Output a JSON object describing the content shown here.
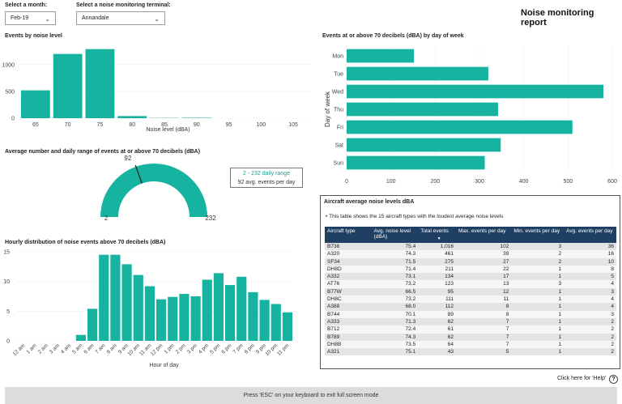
{
  "filters": {
    "month_label": "Select a month:",
    "month_value": "Feb-19",
    "terminal_label": "Select a noise monitoring terminal:",
    "terminal_value": "Annandale"
  },
  "page_title": "Noise monitoring report",
  "events_by_noise": {
    "title": "Events by noise level",
    "xlabel": "Noise level (dBA)"
  },
  "day_of_week": {
    "title": "Events at or above 70 decibels (dBA) by day of week",
    "ylabel": "Day of week"
  },
  "gauge": {
    "title": "Average number and daily range of events at or above 70 decibels (dBA)",
    "min_label": "2",
    "max_label": "232",
    "avg_label": "92",
    "min": 2,
    "max": 232,
    "avg": 92,
    "range_text": "2 - 232 daily range",
    "avg_text": "92 avg. events per day",
    "color": "#16b3a0"
  },
  "hourly": {
    "title": "Hourly distribution of noise events above 70 decibels (dBA)",
    "xlabel": "Hour of day"
  },
  "aircraft_table": {
    "title": "Aircraft average noise levels dBA",
    "note": "This table shows the 15 aircraft types with the loudest average noise levels",
    "headers": [
      "Aircraft type",
      "Avg. noise level (dBA)",
      "Total events",
      "Max. events per day",
      "Min. events per day",
      "Avg. events per day"
    ],
    "sort_indicator": "▼",
    "rows": [
      [
        "B738",
        "75.4",
        "1,016",
        "102",
        "3",
        "36"
      ],
      [
        "A320",
        "74.3",
        "461",
        "39",
        "2",
        "16"
      ],
      [
        "SF34",
        "71.5",
        "275",
        "27",
        "2",
        "10"
      ],
      [
        "DH8D",
        "71.4",
        "211",
        "22",
        "1",
        "8"
      ],
      [
        "A332",
        "73.1",
        "134",
        "17",
        "1",
        "5"
      ],
      [
        "AT76",
        "73.2",
        "123",
        "13",
        "3",
        "4"
      ],
      [
        "B77W",
        "66.5",
        "95",
        "12",
        "1",
        "3"
      ],
      [
        "DH8C",
        "73.2",
        "111",
        "11",
        "1",
        "4"
      ],
      [
        "A388",
        "68.0",
        "112",
        "8",
        "1",
        "4"
      ],
      [
        "B744",
        "70.1",
        "89",
        "8",
        "1",
        "3"
      ],
      [
        "A333",
        "71.3",
        "62",
        "7",
        "1",
        "2"
      ],
      [
        "B712",
        "72.4",
        "61",
        "7",
        "1",
        "2"
      ],
      [
        "B789",
        "74.3",
        "62",
        "7",
        "1",
        "2"
      ],
      [
        "DH8B",
        "73.5",
        "64",
        "7",
        "1",
        "2"
      ],
      [
        "A321",
        "75.1",
        "43",
        "5",
        "1",
        "2"
      ]
    ]
  },
  "help": {
    "text": "Click here for 'Help'",
    "icon": "help-circle-icon"
  },
  "footer_text": "Press 'ESC' on your keyboard to exit full screen mode",
  "chart_data": [
    {
      "type": "bar",
      "title": "Events by noise level",
      "xlabel": "Noise level (dBA)",
      "ylabel": "",
      "categories": [
        "65",
        "70",
        "75",
        "80",
        "85",
        "90",
        "95",
        "100",
        "105"
      ],
      "values": [
        520,
        1200,
        1290,
        40,
        5,
        8,
        0,
        0,
        0
      ],
      "ylim": [
        0,
        1300
      ],
      "yticks": [
        "0",
        "500",
        "1000"
      ],
      "color": "#16b3a0"
    },
    {
      "type": "bar",
      "orientation": "horizontal",
      "title": "Events at or above 70 decibels (dBA) by day of week",
      "ylabel": "Day of week",
      "categories": [
        "Mon",
        "Tue",
        "Wed",
        "Thu",
        "Fri",
        "Sat",
        "Sun"
      ],
      "values": [
        152,
        320,
        580,
        342,
        510,
        348,
        312
      ],
      "xlim": [
        0,
        600
      ],
      "xticks": [
        "0",
        "100",
        "200",
        "300",
        "400",
        "500",
        "600"
      ],
      "color": "#16b3a0"
    },
    {
      "type": "bar",
      "title": "Hourly distribution of noise events above 70 decibels (dBA)",
      "xlabel": "Hour of day",
      "categories": [
        "12 am",
        "1 am",
        "2 am",
        "3 am",
        "4 am",
        "5 am",
        "6 am",
        "7 am",
        "8 am",
        "9 am",
        "10 am",
        "11 am",
        "12 pm",
        "1 pm",
        "2 pm",
        "3 pm",
        "4 pm",
        "5 pm",
        "6 pm",
        "7 pm",
        "8 pm",
        "9 pm",
        "10 pm",
        "11 pm"
      ],
      "values": [
        0,
        0,
        0,
        0,
        0,
        1,
        5.4,
        14.5,
        14.5,
        12.9,
        11.1,
        9.2,
        7,
        7.4,
        7.9,
        7.5,
        10.3,
        11.4,
        9.4,
        10.8,
        8.2,
        6.9,
        6.2,
        4.8
      ],
      "ylim": [
        0,
        15
      ],
      "yticks": [
        "0",
        "5",
        "10",
        "15"
      ],
      "color": "#16b3a0"
    }
  ]
}
